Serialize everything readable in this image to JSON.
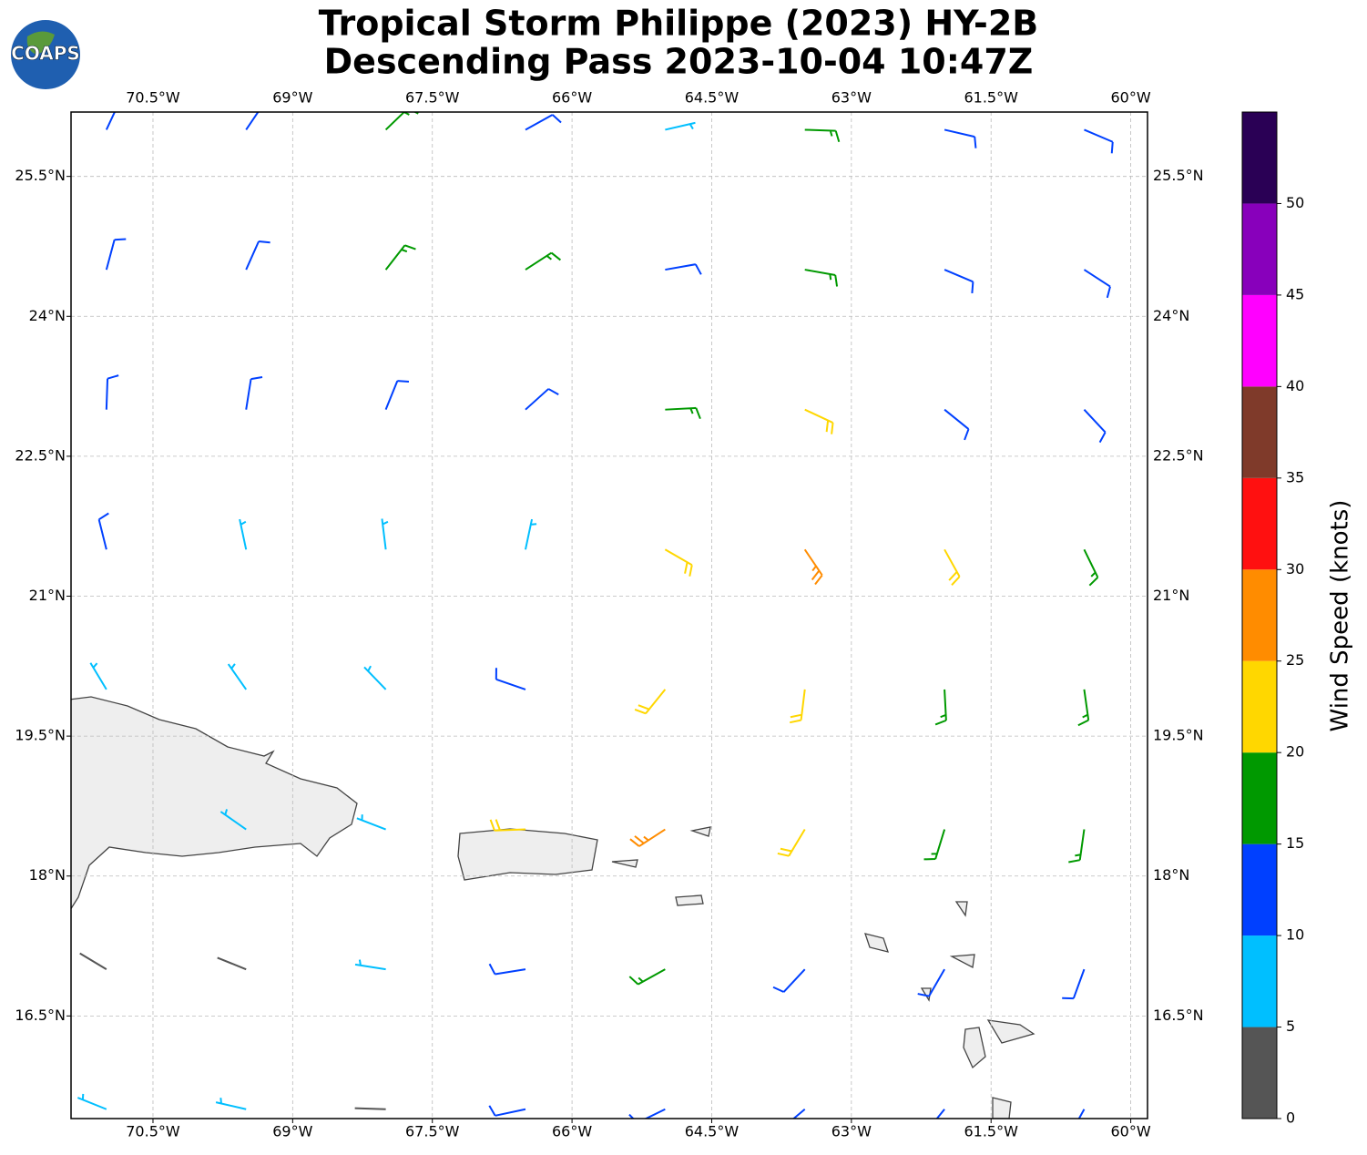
{
  "chart_data": {
    "type": "barbs",
    "title": "Tropical Storm Philippe (2023) HY-2B",
    "subtitle": "Descending Pass 2023-10-04 10:47Z",
    "logo": "COAPS",
    "xlim": [
      -71.38,
      -59.82
    ],
    "ylim": [
      15.4,
      26.19
    ],
    "xticks": [
      {
        "value": -70.5,
        "label": "70.5°W"
      },
      {
        "value": -69,
        "label": "69°W"
      },
      {
        "value": -67.5,
        "label": "67.5°W"
      },
      {
        "value": -66,
        "label": "66°W"
      },
      {
        "value": -64.5,
        "label": "64.5°W"
      },
      {
        "value": -63,
        "label": "63°W"
      },
      {
        "value": -61.5,
        "label": "61.5°W"
      },
      {
        "value": -60,
        "label": "60°W"
      }
    ],
    "yticks": [
      {
        "value": 16.5,
        "label": "16.5°N"
      },
      {
        "value": 18,
        "label": "18°N"
      },
      {
        "value": 19.5,
        "label": "19.5°N"
      },
      {
        "value": 21,
        "label": "21°N"
      },
      {
        "value": 22.5,
        "label": "22.5°N"
      },
      {
        "value": 24,
        "label": "24°N"
      },
      {
        "value": 25.5,
        "label": "25.5°N"
      }
    ],
    "grid": true,
    "lons": [
      -71,
      -69.5,
      -68,
      -66.5,
      -65,
      -63.5,
      -62,
      -60.5
    ],
    "lats": [
      26,
      24.5,
      23,
      21.5,
      20,
      18.5,
      17,
      15.5
    ],
    "speeds": [
      [
        12,
        12,
        17,
        12,
        8,
        17,
        12,
        12
      ],
      [
        12,
        12,
        17,
        17,
        12,
        17,
        12,
        12
      ],
      [
        12,
        12,
        12,
        12,
        17,
        22,
        12,
        12
      ],
      [
        12,
        8,
        8,
        8,
        22,
        27,
        22,
        17
      ],
      [
        8,
        8,
        8,
        12,
        22,
        22,
        17,
        17
      ],
      [
        null,
        8,
        8,
        22,
        27,
        22,
        17,
        17
      ],
      [
        3,
        3,
        8,
        12,
        17,
        12,
        12,
        12
      ],
      [
        8,
        8,
        3,
        12,
        12,
        12,
        12,
        12
      ]
    ],
    "directions": [
      [
        25,
        34,
        46,
        61,
        77,
        92,
        103,
        113
      ],
      [
        15,
        24,
        38,
        57,
        80,
        100,
        113,
        123
      ],
      [
        2,
        9,
        22,
        48,
        87,
        115,
        129,
        137
      ],
      [
        346,
        348,
        353,
        12,
        120,
        146,
        151,
        154
      ],
      [
        329,
        325,
        316,
        289,
        219,
        187,
        177,
        172
      ],
      [
        null,
        305,
        291,
        268,
        237,
        211,
        197,
        188
      ],
      [
        301,
        292,
        279,
        261,
        241,
        223,
        210,
        200
      ],
      [
        292,
        283,
        272,
        258,
        244,
        230,
        219,
        209
      ]
    ],
    "colorbar": {
      "label": "Wind Speed (knots)",
      "bounds": [
        0,
        5,
        10,
        15,
        20,
        25,
        30,
        35,
        40,
        45,
        50,
        55
      ],
      "colors": [
        "#555555",
        "#00bfff",
        "#0040ff",
        "#009900",
        "#ffd700",
        "#ff8c00",
        "#ff1010",
        "#7f3a2a",
        "#ff00ff",
        "#8800bb",
        "#2a0055"
      ],
      "ticks": [
        0,
        5,
        10,
        15,
        20,
        25,
        30,
        35,
        40,
        45,
        50
      ]
    }
  }
}
